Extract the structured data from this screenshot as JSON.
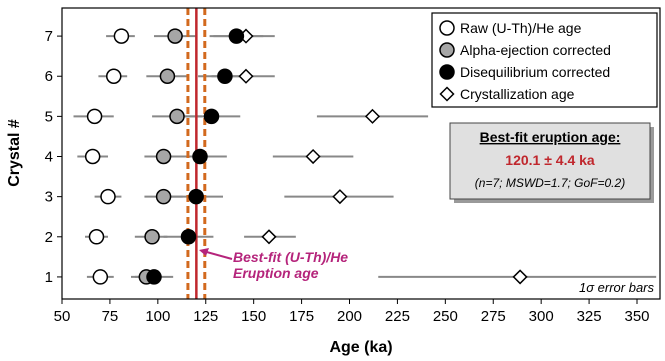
{
  "chart_data": {
    "type": "scatter",
    "xlabel": "Age (ka)",
    "ylabel": "Crystal #",
    "xlim": [
      50,
      362
    ],
    "ylim": [
      0.45,
      7.7
    ],
    "x_ticks": [
      "50",
      "75",
      "100",
      "125",
      "150",
      "175",
      "200",
      "225",
      "250",
      "275",
      "300",
      "325",
      "350"
    ],
    "y_ticks": [
      "1",
      "2",
      "3",
      "4",
      "5",
      "6",
      "7"
    ],
    "crystals": [
      1,
      2,
      3,
      4,
      5,
      6,
      7
    ],
    "series": [
      {
        "name": "Raw (U-Th)/He age",
        "marker": "circle-open",
        "values": [
          70,
          68,
          74,
          66,
          67,
          77,
          81
        ],
        "errors": [
          [
            63,
            77
          ],
          [
            62,
            74
          ],
          [
            67,
            81
          ],
          [
            58,
            74
          ],
          [
            56,
            77
          ],
          [
            69,
            84
          ],
          [
            73,
            88
          ]
        ]
      },
      {
        "name": "Alpha-ejection corrected",
        "marker": "circle-gray",
        "values": [
          94,
          97,
          103,
          103,
          110,
          105,
          109
        ],
        "errors": [
          [
            86,
            102
          ],
          [
            88,
            105
          ],
          [
            93,
            113
          ],
          [
            93,
            113
          ],
          [
            97,
            123
          ],
          [
            94,
            116
          ],
          [
            98,
            120
          ]
        ]
      },
      {
        "name": "Disequilibrium corrected",
        "marker": "circle-filled",
        "values": [
          98,
          116,
          120,
          122,
          128,
          135,
          141
        ],
        "errors": [
          [
            88,
            108
          ],
          [
            103,
            129
          ],
          [
            106,
            134
          ],
          [
            108,
            136
          ],
          [
            113,
            143
          ],
          [
            121,
            149
          ],
          [
            127,
            155
          ]
        ]
      },
      {
        "name": "Crystallization age",
        "marker": "diamond-open",
        "values": [
          289,
          158,
          195,
          181,
          212,
          146,
          146
        ],
        "errors": [
          [
            215,
            360
          ],
          [
            145,
            172
          ],
          [
            166,
            223
          ],
          [
            160,
            202
          ],
          [
            183,
            241
          ],
          [
            128,
            161
          ],
          [
            129,
            161
          ]
        ]
      }
    ],
    "eruption_age": {
      "value": 120.1,
      "lower": 115.7,
      "upper": 124.5
    },
    "best_fit_box": {
      "title": "Best-fit eruption age:",
      "value": "120.1 ± 4.4 ka",
      "stats": "(n=7; MSWD=1.7; GoF=0.2)"
    },
    "annotation": [
      "Best-fit (U-Th)/He",
      "Eruption age"
    ],
    "note": "1σ error bars",
    "colors": {
      "error_bar": "#888888",
      "gray_marker": "#a6a6a6",
      "dashed_line": "#d2691e",
      "solid_line": "#c0272d",
      "annotation": "#b5247b",
      "box_fill": "#e0e0e0"
    }
  }
}
